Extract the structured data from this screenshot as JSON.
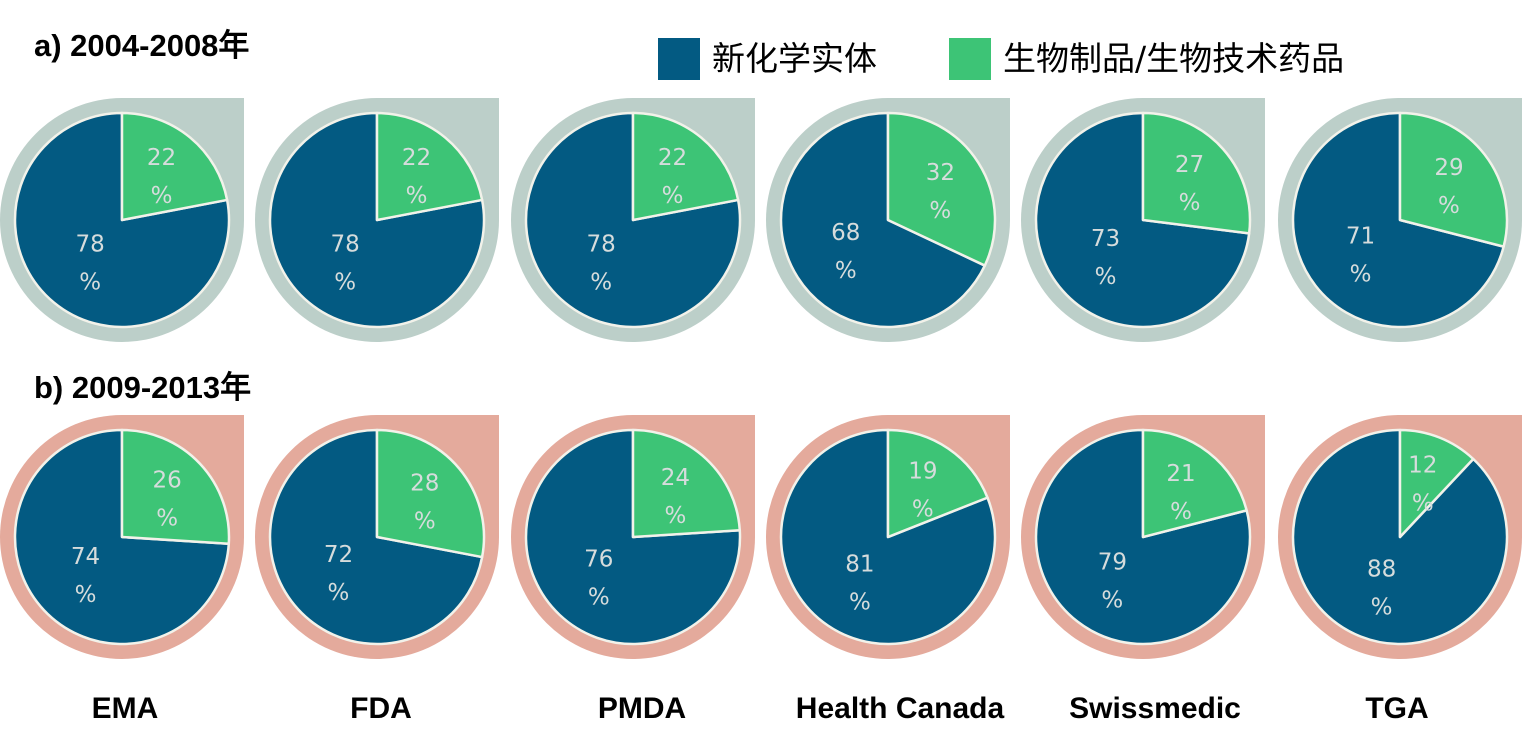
{
  "legend": [
    {
      "label": "新化学实体",
      "color": "#035A82"
    },
    {
      "label": "生物制品/生物技术药品",
      "color": "#3DC476"
    }
  ],
  "colors": {
    "nce": "#035A82",
    "bio": "#3DC476",
    "row_a_background": "#BCCFC9",
    "row_b_background": "#E4AA9C",
    "pie_edge": "#F2F2EA",
    "value_text": "#D6DCDC"
  },
  "agencies": [
    "EMA",
    "FDA",
    "PMDA",
    "Health Canada",
    "Swissmedic",
    "TGA"
  ],
  "chart_data": [
    {
      "type": "pie",
      "title": "a) 2004-2008年",
      "categories": [
        "EMA",
        "FDA",
        "PMDA",
        "Health Canada",
        "Swissmedic",
        "TGA"
      ],
      "series": [
        {
          "name": "新化学实体",
          "values": [
            78,
            78,
            78,
            68,
            73,
            71
          ],
          "unit": "%"
        },
        {
          "name": "生物制品/生物技术药品",
          "values": [
            22,
            22,
            22,
            32,
            27,
            29
          ],
          "unit": "%"
        }
      ]
    },
    {
      "type": "pie",
      "title": "b) 2009-2013年",
      "categories": [
        "EMA",
        "FDA",
        "PMDA",
        "Health Canada",
        "Swissmedic",
        "TGA"
      ],
      "series": [
        {
          "name": "新化学实体",
          "values": [
            74,
            72,
            76,
            81,
            79,
            88
          ],
          "unit": "%"
        },
        {
          "name": "生物制品/生物技术药品",
          "values": [
            26,
            28,
            24,
            19,
            21,
            12
          ],
          "unit": "%"
        }
      ]
    }
  ]
}
